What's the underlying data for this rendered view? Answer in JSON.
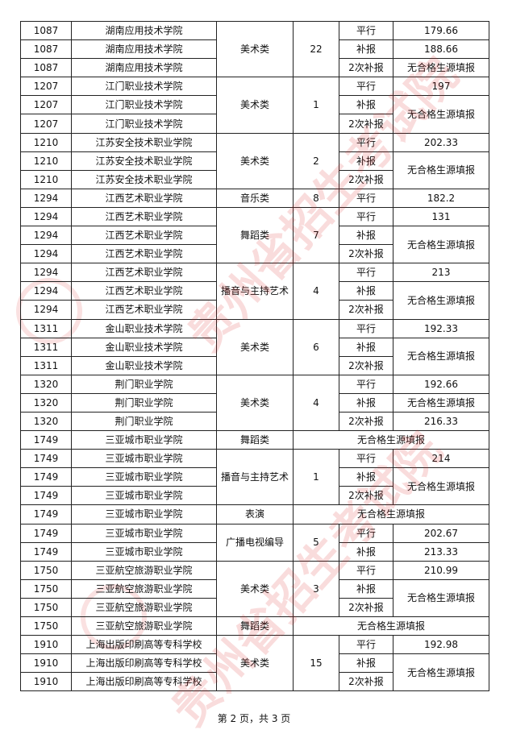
{
  "watermark": "贵州省招生考试院",
  "footer": "第 2 页，共 3 页",
  "no_source": "无合格生源填报",
  "groups": [
    {
      "code": "1087",
      "school": "湖南应用技术学院",
      "category": "美术类",
      "plan": "22",
      "lines": [
        {
          "batch": "平行",
          "score": "179.66",
          "span": 1
        },
        {
          "batch": "补报",
          "score": "188.66",
          "span": 1
        },
        {
          "batch": "2次补报",
          "score": "无合格生源填报",
          "span": 1
        }
      ]
    },
    {
      "code": "1207",
      "school": "江门职业技术学院",
      "category": "美术类",
      "plan": "1",
      "lines": [
        {
          "batch": "平行",
          "score": "197",
          "span": 1
        },
        {
          "batch": "补报",
          "score": "无合格生源填报",
          "span": 2
        },
        {
          "batch": "2次补报"
        }
      ]
    },
    {
      "code": "1210",
      "school": "江苏安全技术职业学院",
      "category": "美术类",
      "plan": "2",
      "lines": [
        {
          "batch": "平行",
          "score": "202.33",
          "span": 1
        },
        {
          "batch": "补报",
          "score": "无合格生源填报",
          "span": 2
        },
        {
          "batch": "2次补报"
        }
      ]
    },
    {
      "code": "1294",
      "school": "江西艺术职业学院",
      "category": "音乐类",
      "plan": "8",
      "lines": [
        {
          "batch": "平行",
          "score": "182.2",
          "span": 1
        }
      ]
    },
    {
      "code": "1294",
      "school": "江西艺术职业学院",
      "category": "舞蹈类",
      "plan": "7",
      "lines": [
        {
          "batch": "平行",
          "score": "131",
          "span": 1
        },
        {
          "batch": "补报",
          "score": "无合格生源填报",
          "span": 2
        },
        {
          "batch": "2次补报"
        }
      ]
    },
    {
      "code": "1294",
      "school": "江西艺术职业学院",
      "category": "播音与主持艺术",
      "plan": "4",
      "lines": [
        {
          "batch": "平行",
          "score": "213",
          "span": 1
        },
        {
          "batch": "补报",
          "score": "无合格生源填报",
          "span": 2
        },
        {
          "batch": "2次补报"
        }
      ]
    },
    {
      "code": "1311",
      "school": "金山职业技术学院",
      "category": "美术类",
      "plan": "6",
      "lines": [
        {
          "batch": "平行",
          "score": "192.33",
          "span": 1
        },
        {
          "batch": "补报",
          "score": "无合格生源填报",
          "span": 2
        },
        {
          "batch": "2次补报"
        }
      ]
    },
    {
      "code": "1320",
      "school": "荆门职业学院",
      "category": "美术类",
      "plan": "4",
      "lines": [
        {
          "batch": "平行",
          "score": "192.66",
          "span": 1
        },
        {
          "batch": "补报",
          "score": "无合格生源填报",
          "span": 1
        },
        {
          "batch": "2次补报",
          "score": "216.33",
          "span": 1
        }
      ]
    },
    {
      "code": "1749",
      "school": "三亚城市职业学院",
      "category": "舞蹈类",
      "merged": "无合格生源填报"
    },
    {
      "code": "1749",
      "school": "三亚城市职业学院",
      "category": "播音与主持艺术",
      "plan": "1",
      "lines": [
        {
          "batch": "平行",
          "score": "214",
          "span": 1
        },
        {
          "batch": "补报",
          "score": "无合格生源填报",
          "span": 2
        },
        {
          "batch": "2次补报"
        }
      ]
    },
    {
      "code": "1749",
      "school": "三亚城市职业学院",
      "category": "表演",
      "merged": "无合格生源填报"
    },
    {
      "code": "1749",
      "school": "三亚城市职业学院",
      "category": "广播电视编导",
      "plan": "5",
      "lines": [
        {
          "batch": "平行",
          "score": "202.67",
          "span": 1
        },
        {
          "batch": "补报",
          "score": "213.33",
          "span": 1
        }
      ]
    },
    {
      "code": "1750",
      "school": "三亚航空旅游职业学院",
      "category": "美术类",
      "plan": "3",
      "lines": [
        {
          "batch": "平行",
          "score": "210.99",
          "span": 1
        },
        {
          "batch": "补报",
          "score": "无合格生源填报",
          "span": 2
        },
        {
          "batch": "2次补报"
        }
      ]
    },
    {
      "code": "1750",
      "school": "三亚航空旅游职业学院",
      "category": "舞蹈类",
      "merged": "无合格生源填报"
    },
    {
      "code": "1910",
      "school": "上海出版印刷高等专科学校",
      "category": "美术类",
      "plan": "15",
      "lines": [
        {
          "batch": "平行",
          "score": "192.98",
          "span": 1
        },
        {
          "batch": "补报",
          "score": "无合格生源填报",
          "span": 2
        },
        {
          "batch": "2次补报"
        }
      ]
    }
  ]
}
